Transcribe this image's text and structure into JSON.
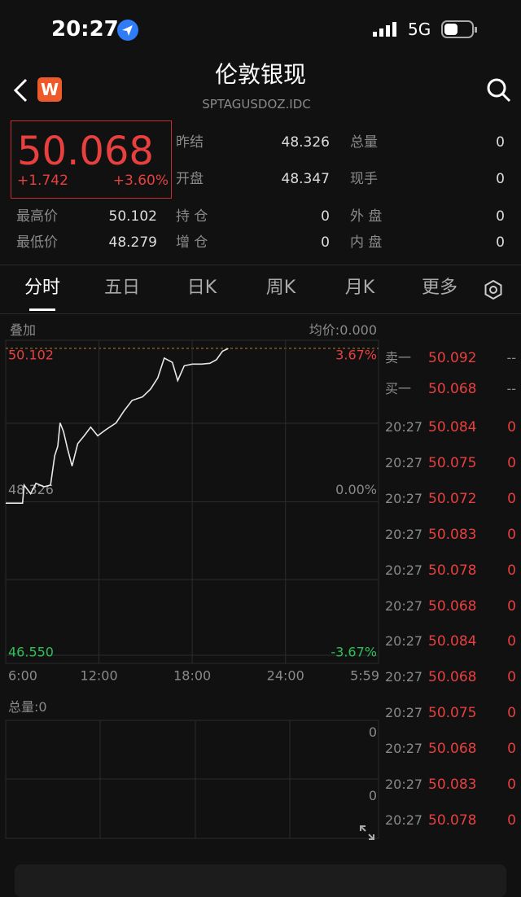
{
  "status_bar": {
    "time": "20:27",
    "network": "5G"
  },
  "header": {
    "logo": "W",
    "title": "伦敦银现",
    "code": "SPTAGUSDOZ.IDC"
  },
  "quote": {
    "price": "50.068",
    "change": "+1.742",
    "change_pct": "+3.60%"
  },
  "stats": [
    {
      "label": "昨结",
      "value": "48.326"
    },
    {
      "label": "总量",
      "value": "0"
    },
    {
      "label": "开盘",
      "value": "48.347"
    },
    {
      "label": "现手",
      "value": "0"
    },
    {
      "label": "最高价",
      "value": "50.102"
    },
    {
      "label": "持 仓",
      "value": "0"
    },
    {
      "label": "外 盘",
      "value": "0"
    },
    {
      "label": "最低价",
      "value": "48.279"
    },
    {
      "label": "增 仓",
      "value": "0"
    },
    {
      "label": "内 盘",
      "value": "0"
    }
  ],
  "tabs": [
    "分时",
    "五日",
    "日K",
    "周K",
    "月K",
    "更多"
  ],
  "chart_data": {
    "type": "line",
    "overlay_label": "叠加",
    "avg_price": "均价:0.000",
    "color": "#e8e8e8",
    "x": [
      0,
      65,
      71,
      96,
      117,
      148,
      173,
      189,
      201,
      210,
      223,
      238,
      256,
      278,
      303,
      328,
      355,
      386,
      426,
      457,
      488,
      528,
      559,
      587,
      612,
      643,
      664,
      689,
      720,
      757,
      788,
      813,
      837,
      859
    ],
    "values": [
      48.31,
      48.31,
      48.52,
      48.42,
      48.54,
      48.5,
      48.52,
      48.86,
      48.97,
      49.24,
      49.14,
      48.95,
      48.74,
      49.0,
      49.09,
      49.19,
      49.09,
      49.16,
      49.24,
      49.38,
      49.5,
      49.54,
      49.63,
      49.76,
      49.99,
      49.94,
      49.73,
      49.9,
      49.92,
      49.92,
      49.93,
      49.97,
      50.07,
      50.1
    ],
    "xlim": [
      0,
      1439
    ],
    "xticks": [
      {
        "value": 0,
        "label": "6:00"
      },
      {
        "value": 360,
        "label": "12:00"
      },
      {
        "value": 720,
        "label": "18:00"
      },
      {
        "value": 1080,
        "label": "24:00"
      },
      {
        "value": 1439,
        "label": "5:59"
      }
    ],
    "ylim": [
      46.55,
      50.102
    ],
    "yticks": [
      50.102,
      48.326,
      {
        "value": 46.55,
        "label": "46.550"
      }
    ],
    "y2lim": [
      -3.67,
      3.67
    ],
    "y2ticks": [
      {
        "value": 3.67,
        "label": "3.67%"
      },
      {
        "value": 0,
        "label": "0.00%"
      },
      {
        "value": -3.67,
        "label": "-3.67%"
      }
    ],
    "volume": {
      "total_label": "总量:0",
      "axis_labels": [
        "0",
        "0"
      ]
    }
  },
  "order_book": {
    "levels": [
      {
        "label": "卖一",
        "price": "50.092",
        "volume": "--"
      },
      {
        "label": "买一",
        "price": "50.068",
        "volume": "--"
      }
    ],
    "trades": [
      {
        "time": "20:27",
        "price": "50.084",
        "volume": "0"
      },
      {
        "time": "20:27",
        "price": "50.075",
        "volume": "0"
      },
      {
        "time": "20:27",
        "price": "50.072",
        "volume": "0"
      },
      {
        "time": "20:27",
        "price": "50.083",
        "volume": "0"
      },
      {
        "time": "20:27",
        "price": "50.078",
        "volume": "0"
      },
      {
        "time": "20:27",
        "price": "50.068",
        "volume": "0"
      },
      {
        "time": "20:27",
        "price": "50.084",
        "volume": "0"
      },
      {
        "time": "20:27",
        "price": "50.068",
        "volume": "0"
      },
      {
        "time": "20:27",
        "price": "50.075",
        "volume": "0"
      },
      {
        "time": "20:27",
        "price": "50.068",
        "volume": "0"
      },
      {
        "time": "20:27",
        "price": "50.083",
        "volume": "0"
      },
      {
        "time": "20:27",
        "price": "50.078",
        "volume": "0"
      }
    ]
  }
}
